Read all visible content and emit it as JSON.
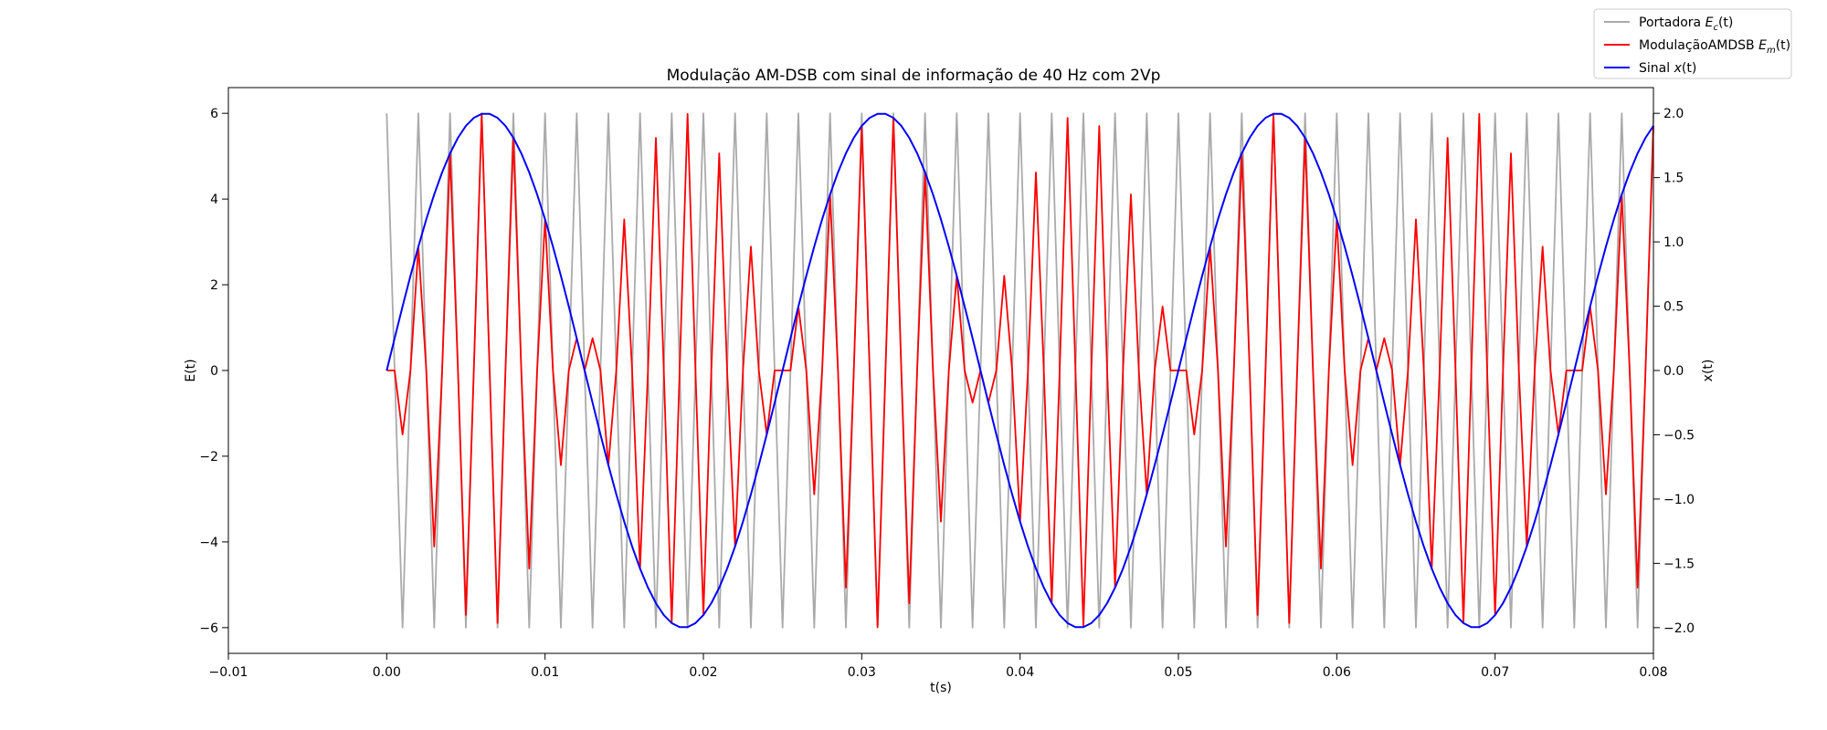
{
  "chart_data": {
    "type": "line",
    "title": "Modulação AM-DSB com sinal de informação de 40 Hz com 2Vp",
    "xlabel": "t(s)",
    "ylabel": "E(t)",
    "y2label": "x(t)",
    "xlim": [
      -0.01,
      0.08
    ],
    "ylim": [
      -6.6,
      6.6
    ],
    "y2lim": [
      -2.2,
      2.2
    ],
    "x_ticks": [
      -0.01,
      0.0,
      0.01,
      0.02,
      0.03,
      0.04,
      0.05,
      0.06,
      0.07,
      0.08
    ],
    "x_tick_labels": [
      "−0.01",
      "0.00",
      "0.01",
      "0.02",
      "0.03",
      "0.04",
      "0.05",
      "0.06",
      "0.07",
      "0.08"
    ],
    "y_ticks": [
      -6,
      -4,
      -2,
      0,
      2,
      4,
      6
    ],
    "y_tick_labels": [
      "−6",
      "−4",
      "−2",
      "0",
      "2",
      "4",
      "6"
    ],
    "y2_ticks": [
      -2.0,
      -1.5,
      -1.0,
      -0.5,
      0.0,
      0.5,
      1.0,
      1.5,
      2.0
    ],
    "y2_tick_labels": [
      "−2.0",
      "−1.5",
      "−1.0",
      "−0.5",
      "0.0",
      "0.5",
      "1.0",
      "1.5",
      "2.0"
    ],
    "grid": false,
    "legend_position": "top-right outside",
    "signal_params": {
      "t_start": 0.0,
      "t_end": 0.08,
      "t_step": 0.0005,
      "carrier_amplitude": 6,
      "carrier_frequency_hz": 500,
      "message_amplitude": 2,
      "message_frequency_hz": 40
    },
    "series": [
      {
        "name": "Portadora",
        "name_math": "E",
        "name_sub": "c",
        "name_arg": "(t)",
        "color": "#aaaaaa",
        "axis": "left",
        "formula": "6*cos(2*pi*500*t)"
      },
      {
        "name": "ModulaçãoAMDSB",
        "name_math": "E",
        "name_sub": "m",
        "name_arg": "(t)",
        "color": "#ff0000",
        "axis": "left",
        "formula": "6*cos(2*pi*500*t)*sin(2*pi*40*t)"
      },
      {
        "name": "Sinal",
        "name_math": "x",
        "name_sub": "",
        "name_arg": "(t)",
        "color": "#0000ff",
        "axis": "right",
        "formula": "2*sin(2*pi*40*t)"
      }
    ]
  }
}
